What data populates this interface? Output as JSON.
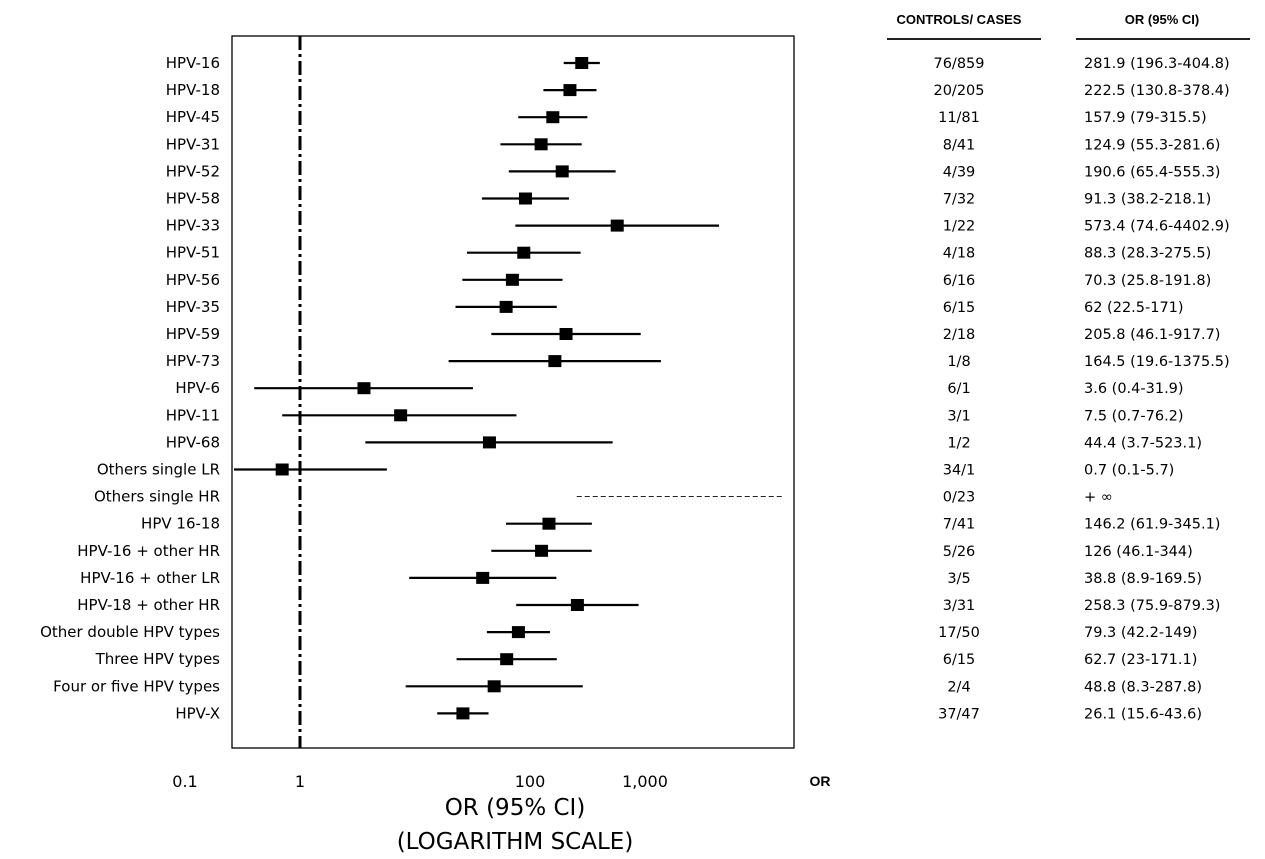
{
  "chart_data": {
    "type": "forest",
    "scale": "log",
    "xlim": [
      0.1,
      3000
    ],
    "reference_value": 1,
    "x_ticks": [
      {
        "value": 0.1,
        "label": "0.1"
      },
      {
        "value": 1,
        "label": "1"
      },
      {
        "value": 100,
        "label": "100"
      },
      {
        "value": 1000,
        "label": "1,000"
      }
    ],
    "xlabel_line1": "OR (95% CI)",
    "xlabel_line2": "(LOGARITHM SCALE)",
    "or_label": "OR",
    "col_header_1": "CONTROLS/ CASES",
    "col_header_2": "OR (95%  CI)",
    "rows": [
      {
        "label": "HPV-16",
        "counts": "76/859",
        "or_text": "281.9 (196.3-404.8)",
        "or": 281.9,
        "lo": 196.3,
        "hi": 404.8
      },
      {
        "label": "HPV-18",
        "counts": "20/205",
        "or_text": "222.5 (130.8-378.4)",
        "or": 222.5,
        "lo": 130.8,
        "hi": 378.4
      },
      {
        "label": "HPV-45",
        "counts": "11/81",
        "or_text": "157.9 (79-315.5)",
        "or": 157.9,
        "lo": 79,
        "hi": 315.5
      },
      {
        "label": "HPV-31",
        "counts": "8/41",
        "or_text": "124.9 (55.3-281.6)",
        "or": 124.9,
        "lo": 55.3,
        "hi": 281.6
      },
      {
        "label": "HPV-52",
        "counts": "4/39",
        "or_text": "190.6 (65.4-555.3)",
        "or": 190.6,
        "lo": 65.4,
        "hi": 555.3
      },
      {
        "label": "HPV-58",
        "counts": "7/32",
        "or_text": "91.3 (38.2-218.1)",
        "or": 91.3,
        "lo": 38.2,
        "hi": 218.1
      },
      {
        "label": "HPV-33",
        "counts": "1/22",
        "or_text": "573.4 (74.6-4402.9)",
        "or": 573.4,
        "lo": 74.6,
        "hi": 4402.9
      },
      {
        "label": "HPV-51",
        "counts": "4/18",
        "or_text": "88.3 (28.3-275.5)",
        "or": 88.3,
        "lo": 28.3,
        "hi": 275.5
      },
      {
        "label": "HPV-56",
        "counts": "6/16",
        "or_text": "70.3 (25.8-191.8)",
        "or": 70.3,
        "lo": 25.8,
        "hi": 191.8
      },
      {
        "label": "HPV-35",
        "counts": "6/15",
        "or_text": "62 (22.5-171)",
        "or": 62,
        "lo": 22.5,
        "hi": 171
      },
      {
        "label": "HPV-59",
        "counts": "2/18",
        "or_text": "205.8 (46.1-917.7)",
        "or": 205.8,
        "lo": 46.1,
        "hi": 917.7
      },
      {
        "label": "HPV-73",
        "counts": "1/8",
        "or_text": "164.5 (19.6-1375.5)",
        "or": 164.5,
        "lo": 19.6,
        "hi": 1375.5
      },
      {
        "label": "HPV-6",
        "counts": "6/1",
        "or_text": "3.6 (0.4-31.9)",
        "or": 3.6,
        "lo": 0.4,
        "hi": 31.9
      },
      {
        "label": "HPV-11",
        "counts": "3/1",
        "or_text": "7.5 (0.7-76.2)",
        "or": 7.5,
        "lo": 0.7,
        "hi": 76.2
      },
      {
        "label": "HPV-68",
        "counts": "1/2",
        "or_text": "44.4 (3.7-523.1)",
        "or": 44.4,
        "lo": 3.7,
        "hi": 523.1
      },
      {
        "label": "Others single LR",
        "counts": "34/1",
        "or_text": "0.7 (0.1-5.7)",
        "or": 0.7,
        "lo": 0.1,
        "hi": 5.7
      },
      {
        "label": "Others single HR",
        "counts": "0/23",
        "or_text": "+ ∞",
        "or": null,
        "lo": 250,
        "hi": null,
        "infinite": true
      },
      {
        "label": "HPV 16-18",
        "counts": "7/41",
        "or_text": "146.2 (61.9-345.1)",
        "or": 146.2,
        "lo": 61.9,
        "hi": 345.1
      },
      {
        "label": "HPV-16 + other HR",
        "counts": "5/26",
        "or_text": "126 (46.1-344)",
        "or": 126,
        "lo": 46.1,
        "hi": 344
      },
      {
        "label": "HPV-16 + other LR",
        "counts": "3/5",
        "or_text": "38.8 (8.9-169.5)",
        "or": 38.8,
        "lo": 8.9,
        "hi": 169.5
      },
      {
        "label": "HPV-18 + other HR",
        "counts": "3/31",
        "or_text": "258.3 (75.9-879.3)",
        "or": 258.3,
        "lo": 75.9,
        "hi": 879.3
      },
      {
        "label": "Other double HPV types",
        "counts": "17/50",
        "or_text": "79.3 (42.2-149)",
        "or": 79.3,
        "lo": 42.2,
        "hi": 149
      },
      {
        "label": "Three HPV types",
        "counts": "6/15",
        "or_text": "62.7 (23-171.1)",
        "or": 62.7,
        "lo": 23,
        "hi": 171.1
      },
      {
        "label": "Four or five HPV types",
        "counts": "2/4",
        "or_text": "48.8 (8.3-287.8)",
        "or": 48.8,
        "lo": 8.3,
        "hi": 287.8
      },
      {
        "label": "HPV-X",
        "counts": "37/47",
        "or_text": "26.1 (15.6-43.6)",
        "or": 26.1,
        "lo": 15.6,
        "hi": 43.6
      }
    ]
  }
}
